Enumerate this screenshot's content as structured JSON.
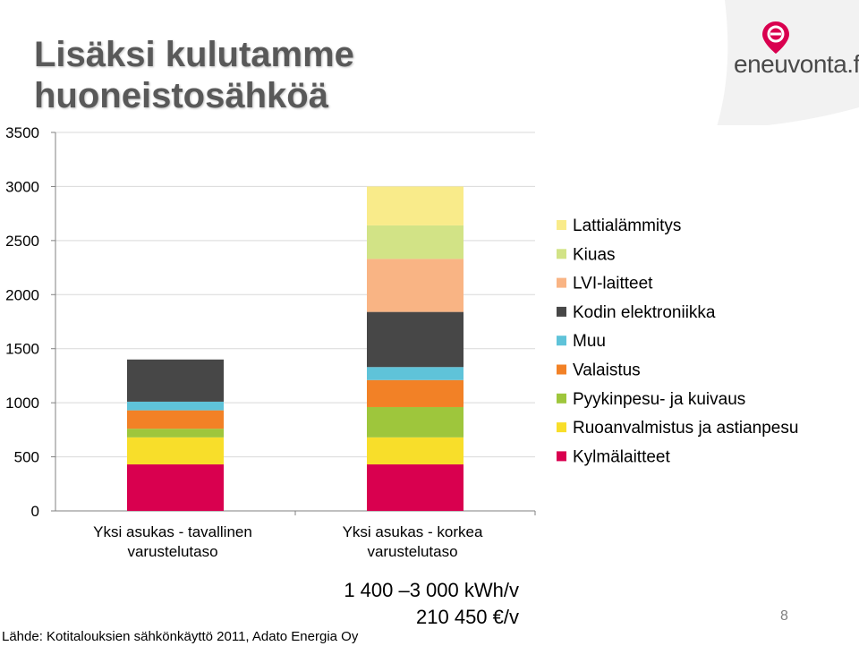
{
  "slide": {
    "title_line1": "Lisäksi kulutamme",
    "title_line2": "huoneistosähköä",
    "logo_text": "eneuvonta.fi",
    "summary_kwh": "1 400 –3 000 kWh/v",
    "summary_eur": "210  450 €/v",
    "source": "Lähde: Kotitalouksien sähkönkäyttö 2011, Adato Energia Oy",
    "page_number": "8"
  },
  "chart_data": {
    "type": "bar",
    "stacked": true,
    "categories": [
      "Yksi asukas - tavallinen varustelutaso",
      "Yksi asukas - korkea varustelutaso"
    ],
    "category_lines": [
      [
        "Yksi asukas - tavallinen",
        "varustelutaso"
      ],
      [
        "Yksi asukas - korkea",
        "varustelutaso"
      ]
    ],
    "ylim": [
      0,
      3500
    ],
    "yticks": [
      0,
      500,
      1000,
      1500,
      2000,
      2500,
      3000,
      3500
    ],
    "grid": true,
    "legend_position": "right",
    "series": [
      {
        "name": "Kylmälaitteet",
        "color": "#d9004f",
        "values": [
          430,
          430
        ]
      },
      {
        "name": "Ruoanvalmistus ja astianpesu",
        "color": "#f8de2a",
        "values": [
          250,
          250
        ]
      },
      {
        "name": "Pyykinpesu- ja kuivaus",
        "color": "#9ec63c",
        "values": [
          80,
          280
        ]
      },
      {
        "name": "Valaistus",
        "color": "#f28126",
        "values": [
          170,
          250
        ]
      },
      {
        "name": "Muu",
        "color": "#5fc3d9",
        "values": [
          80,
          120
        ]
      },
      {
        "name": "Kodin elektroniikka",
        "color": "#474747",
        "values": [
          390,
          510
        ]
      },
      {
        "name": "LVI-laitteet",
        "color": "#f9b484",
        "values": [
          0,
          490
        ]
      },
      {
        "name": "Kiuas",
        "color": "#d2e386",
        "values": [
          0,
          310
        ]
      },
      {
        "name": "Lattialämmitys",
        "color": "#f9eb8a",
        "values": [
          0,
          360
        ]
      }
    ]
  }
}
